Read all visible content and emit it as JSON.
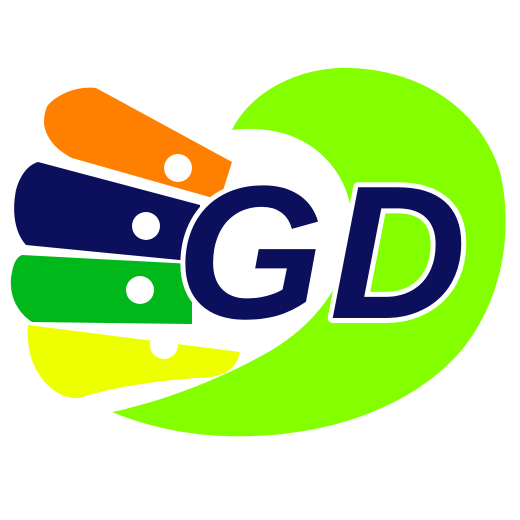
{
  "logo": {
    "text": "GD",
    "letters": [
      "G",
      "D"
    ],
    "colors": {
      "background": "#ffffff",
      "leaf_green": "#84ff00",
      "navy": "#0b0f5c",
      "orange": "#ff7f00",
      "green": "#00b81a",
      "yellow": "#eeff00",
      "hole": "#ffffff",
      "outline": "#ffffff"
    }
  }
}
